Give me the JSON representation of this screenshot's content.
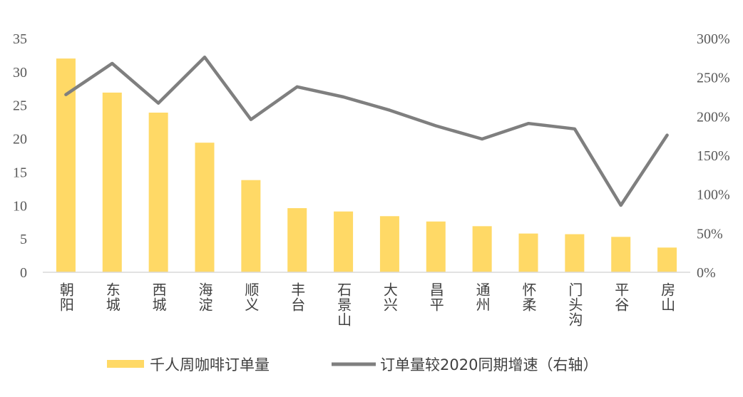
{
  "chart_data": {
    "type": "bar",
    "categories": [
      "朝阳",
      "东城",
      "西城",
      "海淀",
      "顺义",
      "丰台",
      "石景山",
      "大兴",
      "昌平",
      "通州",
      "怀柔",
      "门头沟",
      "平谷",
      "房山"
    ],
    "series": [
      {
        "name": "千人周咖啡订单量",
        "type": "bar",
        "axis": "left",
        "color": "#FFD966",
        "values": [
          32.0,
          26.9,
          23.9,
          19.4,
          13.8,
          9.6,
          9.1,
          8.4,
          7.6,
          6.9,
          5.8,
          5.7,
          5.3,
          3.7
        ]
      },
      {
        "name": "订单量较2020同期增速（右轴）",
        "type": "line",
        "axis": "right",
        "color": "#7F7F7F",
        "values": [
          228,
          268,
          217,
          276,
          196,
          238,
          225,
          208,
          188,
          171,
          191,
          184,
          86,
          176
        ]
      }
    ],
    "y_left": {
      "ylim": [
        0,
        35
      ],
      "ticks": [
        "0",
        "5",
        "10",
        "15",
        "20",
        "25",
        "30",
        "35"
      ]
    },
    "y_right": {
      "ylim": [
        0,
        300
      ],
      "ticks": [
        "0%",
        "50%",
        "100%",
        "150%",
        "200%",
        "250%",
        "300%"
      ]
    },
    "grid": false,
    "legend_position": "bottom"
  }
}
